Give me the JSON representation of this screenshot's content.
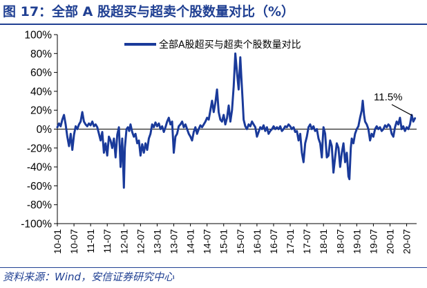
{
  "figure": {
    "title": "图 17：全部 A 股超买与超卖个股数量对比（%）",
    "source": "资料来源：Wind，安信证券研究中心",
    "brand_color": "#1f3f92",
    "line_color": "#1a3a9a"
  },
  "chart_data": {
    "type": "line",
    "title": "",
    "xlabel": "",
    "ylabel": "",
    "ylim": [
      -100,
      100
    ],
    "yticks": [
      -100,
      -80,
      -60,
      -40,
      -20,
      0,
      20,
      40,
      60,
      80,
      100
    ],
    "ytick_labels": [
      "-100%",
      "-80%",
      "-60%",
      "-40%",
      "-20%",
      "0%",
      "20%",
      "40%",
      "60%",
      "80%",
      "100%"
    ],
    "xlim": [
      2010.0,
      2020.8
    ],
    "xtick_labels": [
      "10-01",
      "10-07",
      "11-01",
      "11-07",
      "12-01",
      "12-07",
      "13-01",
      "13-07",
      "14-01",
      "14-07",
      "15-01",
      "15-07",
      "16-01",
      "16-07",
      "17-01",
      "17-07",
      "18-01",
      "18-07",
      "19-01",
      "19-07",
      "20-01",
      "20-07"
    ],
    "legend": "全部A股超买与超卖个股数量对比",
    "legend_position": "top-center",
    "annotation": {
      "text": "11.5%",
      "x": 2020.75,
      "y": 11.5
    },
    "series": [
      {
        "name": "全部A股超买与超卖个股数量对比",
        "points": [
          [
            2010.0,
            2
          ],
          [
            2010.05,
            6
          ],
          [
            2010.1,
            3
          ],
          [
            2010.15,
            10
          ],
          [
            2010.2,
            15
          ],
          [
            2010.25,
            5
          ],
          [
            2010.3,
            -8
          ],
          [
            2010.35,
            -18
          ],
          [
            2010.4,
            -5
          ],
          [
            2010.45,
            -22
          ],
          [
            2010.5,
            -6
          ],
          [
            2010.55,
            3
          ],
          [
            2010.6,
            0
          ],
          [
            2010.65,
            5
          ],
          [
            2010.7,
            8
          ],
          [
            2010.75,
            18
          ],
          [
            2010.8,
            8
          ],
          [
            2010.85,
            5
          ],
          [
            2010.9,
            3
          ],
          [
            2010.95,
            6
          ],
          [
            2011.0,
            4
          ],
          [
            2011.05,
            8
          ],
          [
            2011.1,
            3
          ],
          [
            2011.15,
            5
          ],
          [
            2011.2,
            2
          ],
          [
            2011.25,
            -5
          ],
          [
            2011.3,
            -12
          ],
          [
            2011.35,
            -3
          ],
          [
            2011.4,
            -25
          ],
          [
            2011.45,
            -15
          ],
          [
            2011.5,
            -28
          ],
          [
            2011.55,
            -8
          ],
          [
            2011.6,
            -12
          ],
          [
            2011.65,
            -20
          ],
          [
            2011.7,
            -10
          ],
          [
            2011.75,
            -30
          ],
          [
            2011.8,
            -6
          ],
          [
            2011.85,
            2
          ],
          [
            2011.9,
            -40
          ],
          [
            2011.95,
            -10
          ],
          [
            2012.0,
            -62
          ],
          [
            2012.03,
            -20
          ],
          [
            2012.08,
            0
          ],
          [
            2012.12,
            2
          ],
          [
            2012.16,
            -2
          ],
          [
            2012.2,
            5
          ],
          [
            2012.25,
            -3
          ],
          [
            2012.3,
            -8
          ],
          [
            2012.35,
            -5
          ],
          [
            2012.4,
            -15
          ],
          [
            2012.45,
            -12
          ],
          [
            2012.5,
            -28
          ],
          [
            2012.55,
            -16
          ],
          [
            2012.6,
            -25
          ],
          [
            2012.65,
            -15
          ],
          [
            2012.7,
            -22
          ],
          [
            2012.75,
            -10
          ],
          [
            2012.8,
            -5
          ],
          [
            2012.85,
            5
          ],
          [
            2012.9,
            2
          ],
          [
            2012.95,
            7
          ],
          [
            2013.0,
            3
          ],
          [
            2013.05,
            6
          ],
          [
            2013.1,
            0
          ],
          [
            2013.15,
            3
          ],
          [
            2013.2,
            -3
          ],
          [
            2013.25,
            2
          ],
          [
            2013.3,
            8
          ],
          [
            2013.35,
            12
          ],
          [
            2013.4,
            5
          ],
          [
            2013.45,
            8
          ],
          [
            2013.5,
            -25
          ],
          [
            2013.55,
            -8
          ],
          [
            2013.6,
            -5
          ],
          [
            2013.65,
            3
          ],
          [
            2013.7,
            5
          ],
          [
            2013.75,
            8
          ],
          [
            2013.8,
            2
          ],
          [
            2013.85,
            5
          ],
          [
            2013.9,
            0
          ],
          [
            2013.95,
            -5
          ],
          [
            2014.0,
            -8
          ],
          [
            2014.05,
            -12
          ],
          [
            2014.1,
            -3
          ],
          [
            2014.15,
            2
          ],
          [
            2014.2,
            -5
          ],
          [
            2014.25,
            0
          ],
          [
            2014.3,
            4
          ],
          [
            2014.35,
            2
          ],
          [
            2014.4,
            5
          ],
          [
            2014.45,
            8
          ],
          [
            2014.5,
            12
          ],
          [
            2014.55,
            10
          ],
          [
            2014.6,
            20
          ],
          [
            2014.65,
            30
          ],
          [
            2014.7,
            18
          ],
          [
            2014.75,
            28
          ],
          [
            2014.8,
            42
          ],
          [
            2014.85,
            18
          ],
          [
            2014.9,
            10
          ],
          [
            2014.95,
            8
          ],
          [
            2015.0,
            15
          ],
          [
            2015.05,
            5
          ],
          [
            2015.1,
            12
          ],
          [
            2015.15,
            25
          ],
          [
            2015.2,
            8
          ],
          [
            2015.25,
            20
          ],
          [
            2015.3,
            45
          ],
          [
            2015.35,
            80
          ],
          [
            2015.4,
            60
          ],
          [
            2015.45,
            42
          ],
          [
            2015.5,
            76
          ],
          [
            2015.53,
            55
          ],
          [
            2015.57,
            30
          ],
          [
            2015.6,
            10
          ],
          [
            2015.65,
            3
          ],
          [
            2015.7,
            0
          ],
          [
            2015.75,
            5
          ],
          [
            2015.8,
            3
          ],
          [
            2015.85,
            8
          ],
          [
            2015.9,
            5
          ],
          [
            2015.95,
            2
          ],
          [
            2016.0,
            -8
          ],
          [
            2016.05,
            -3
          ],
          [
            2016.1,
            2
          ],
          [
            2016.15,
            0
          ],
          [
            2016.2,
            4
          ],
          [
            2016.25,
            -2
          ],
          [
            2016.3,
            2
          ],
          [
            2016.35,
            -5
          ],
          [
            2016.4,
            -2
          ],
          [
            2016.45,
            0
          ],
          [
            2016.5,
            3
          ],
          [
            2016.55,
            0
          ],
          [
            2016.6,
            2
          ],
          [
            2016.65,
            0
          ],
          [
            2016.7,
            3
          ],
          [
            2016.75,
            -2
          ],
          [
            2016.8,
            0
          ],
          [
            2016.85,
            3
          ],
          [
            2016.9,
            2
          ],
          [
            2016.95,
            5
          ],
          [
            2017.0,
            3
          ],
          [
            2017.05,
            0
          ],
          [
            2017.1,
            2
          ],
          [
            2017.15,
            -3
          ],
          [
            2017.2,
            -2
          ],
          [
            2017.25,
            -12
          ],
          [
            2017.3,
            -5
          ],
          [
            2017.35,
            -25
          ],
          [
            2017.4,
            -35
          ],
          [
            2017.45,
            -15
          ],
          [
            2017.5,
            -8
          ],
          [
            2017.55,
            2
          ],
          [
            2017.6,
            5
          ],
          [
            2017.65,
            0
          ],
          [
            2017.7,
            3
          ],
          [
            2017.75,
            -2
          ],
          [
            2017.8,
            0
          ],
          [
            2017.85,
            -10
          ],
          [
            2017.9,
            -15
          ],
          [
            2017.95,
            -30
          ],
          [
            2017.98,
            -10
          ],
          [
            2018.0,
            2
          ],
          [
            2018.05,
            -5
          ],
          [
            2018.1,
            -30
          ],
          [
            2018.15,
            -28
          ],
          [
            2018.2,
            -12
          ],
          [
            2018.25,
            -18
          ],
          [
            2018.3,
            -46
          ],
          [
            2018.35,
            -30
          ],
          [
            2018.4,
            -15
          ],
          [
            2018.45,
            -20
          ],
          [
            2018.5,
            -40
          ],
          [
            2018.55,
            -25
          ],
          [
            2018.6,
            -15
          ],
          [
            2018.65,
            -35
          ],
          [
            2018.7,
            -25
          ],
          [
            2018.75,
            -50
          ],
          [
            2018.78,
            -53
          ],
          [
            2018.82,
            -20
          ],
          [
            2018.85,
            -10
          ],
          [
            2018.9,
            -15
          ],
          [
            2018.95,
            -5
          ],
          [
            2019.0,
            0
          ],
          [
            2019.05,
            3
          ],
          [
            2019.1,
            12
          ],
          [
            2019.15,
            20
          ],
          [
            2019.18,
            30
          ],
          [
            2019.22,
            15
          ],
          [
            2019.25,
            8
          ],
          [
            2019.3,
            5
          ],
          [
            2019.35,
            0
          ],
          [
            2019.4,
            -12
          ],
          [
            2019.45,
            -5
          ],
          [
            2019.5,
            -8
          ],
          [
            2019.55,
            0
          ],
          [
            2019.6,
            3
          ],
          [
            2019.65,
            0
          ],
          [
            2019.7,
            2
          ],
          [
            2019.75,
            -2
          ],
          [
            2019.8,
            0
          ],
          [
            2019.85,
            4
          ],
          [
            2019.9,
            2
          ],
          [
            2019.95,
            5
          ],
          [
            2020.0,
            3
          ],
          [
            2020.05,
            -5
          ],
          [
            2020.1,
            -8
          ],
          [
            2020.15,
            2
          ],
          [
            2020.2,
            8
          ],
          [
            2020.25,
            5
          ],
          [
            2020.3,
            12
          ],
          [
            2020.35,
            0
          ],
          [
            2020.4,
            3
          ],
          [
            2020.45,
            -2
          ],
          [
            2020.5,
            2
          ],
          [
            2020.55,
            0
          ],
          [
            2020.6,
            5
          ],
          [
            2020.65,
            15
          ],
          [
            2020.7,
            8
          ],
          [
            2020.75,
            11.5
          ]
        ]
      }
    ]
  }
}
